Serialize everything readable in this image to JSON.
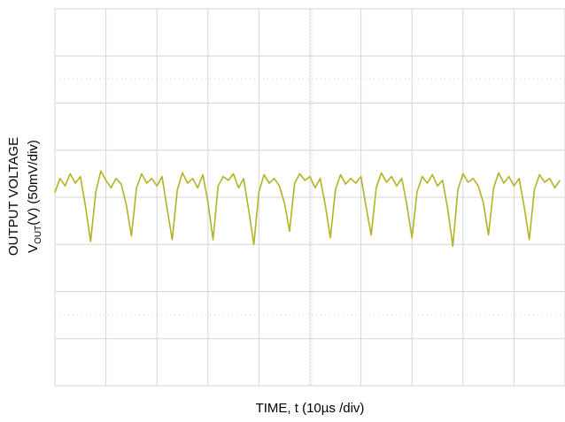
{
  "chart_data": {
    "type": "line",
    "x_label": "TIME, t (10µs /div)",
    "y_label": [
      "OUTPUT VOLTAGE",
      [
        "V",
        "OUT",
        "(V) (50mV/div)"
      ]
    ],
    "xlim": [
      0,
      100
    ],
    "ylim": [
      -200,
      200
    ],
    "xticks": [
      0,
      10,
      20,
      30,
      40,
      50,
      60,
      70,
      80,
      90,
      100
    ],
    "yticks": [
      -200,
      -150,
      -100,
      -50,
      0,
      50,
      100,
      150,
      200
    ],
    "grid": true,
    "series": [
      {
        "color": "#b3b324",
        "x": [
          0,
          1,
          2,
          3,
          4,
          5,
          6,
          7,
          8,
          9,
          10,
          11,
          12,
          13,
          14,
          15,
          16,
          17,
          18,
          19,
          20,
          21,
          22,
          23,
          24,
          25,
          26,
          27,
          28,
          29,
          30,
          31,
          32,
          33,
          34,
          35,
          36,
          37,
          38,
          39,
          40,
          41,
          42,
          43,
          44,
          45,
          46,
          47,
          48,
          49,
          50,
          51,
          52,
          53,
          54,
          55,
          56,
          57,
          58,
          59,
          60,
          61,
          62,
          63,
          64,
          65,
          66,
          67,
          68,
          69,
          70,
          71,
          72,
          73,
          74,
          75,
          76,
          77,
          78,
          79,
          80,
          81,
          82,
          83,
          84,
          85,
          86,
          87,
          88,
          89,
          90,
          91,
          92,
          93,
          94,
          95,
          96,
          97,
          98,
          99
        ],
        "values": [
          5,
          20,
          12,
          25,
          15,
          22,
          -10,
          -47,
          5,
          28,
          18,
          10,
          20,
          14,
          -8,
          -41,
          10,
          25,
          15,
          20,
          12,
          22,
          -12,
          -45,
          8,
          26,
          15,
          20,
          10,
          24,
          -5,
          -45,
          12,
          22,
          18,
          25,
          10,
          20,
          -14,
          -50,
          6,
          24,
          15,
          20,
          12,
          -6,
          -36,
          15,
          25,
          18,
          22,
          10,
          20,
          -8,
          -43,
          8,
          24,
          14,
          20,
          15,
          22,
          -10,
          -40,
          10,
          26,
          16,
          22,
          12,
          20,
          -8,
          -43,
          6,
          22,
          15,
          24,
          12,
          18,
          -12,
          -52,
          8,
          25,
          16,
          20,
          12,
          -6,
          -40,
          10,
          26,
          15,
          22,
          12,
          20,
          -10,
          -45,
          8,
          24,
          16,
          20,
          10,
          18
        ]
      }
    ]
  }
}
